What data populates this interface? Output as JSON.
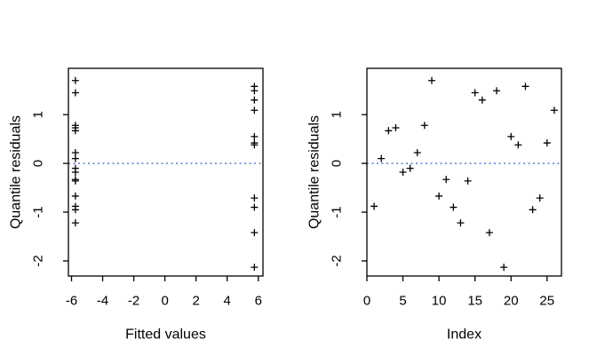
{
  "figure": {
    "background_color": "#ffffff",
    "point_color": "#000000",
    "axis_color": "#000000",
    "marker_symbol": "+",
    "reference_line": {
      "y": 0,
      "color": "#3a5fcd",
      "style": "dotted"
    }
  },
  "chart_data": [
    {
      "id": "residuals-vs-fitted",
      "type": "scatter",
      "title": "",
      "xlabel": "Fitted values",
      "ylabel": "Quantile residuals",
      "xlim": [
        -6.2,
        6.3
      ],
      "ylim": [
        -2.31,
        1.95
      ],
      "xticks": [
        -6,
        -4,
        -2,
        0,
        2,
        4,
        6
      ],
      "yticks": [
        -2,
        -1,
        0,
        1
      ],
      "grid": false,
      "legend": null,
      "marker": "plus",
      "zero_line": true,
      "points": [
        {
          "x": -5.75,
          "y": 1.7
        },
        {
          "x": -5.75,
          "y": 1.45
        },
        {
          "x": -5.75,
          "y": 0.78
        },
        {
          "x": -5.75,
          "y": 0.73
        },
        {
          "x": -5.75,
          "y": 0.67
        },
        {
          "x": -5.75,
          "y": 0.22
        },
        {
          "x": -5.75,
          "y": 0.1
        },
        {
          "x": -5.75,
          "y": -0.1
        },
        {
          "x": -5.75,
          "y": -0.18
        },
        {
          "x": -5.75,
          "y": -0.33
        },
        {
          "x": -5.75,
          "y": -0.36
        },
        {
          "x": -5.75,
          "y": -0.67
        },
        {
          "x": -5.75,
          "y": -0.88
        },
        {
          "x": -5.75,
          "y": -0.95
        },
        {
          "x": -5.75,
          "y": -1.22
        },
        {
          "x": 5.75,
          "y": 1.58
        },
        {
          "x": 5.75,
          "y": 1.49
        },
        {
          "x": 5.75,
          "y": 1.3
        },
        {
          "x": 5.75,
          "y": 1.09
        },
        {
          "x": 5.75,
          "y": 0.55
        },
        {
          "x": 5.75,
          "y": 0.42
        },
        {
          "x": 5.75,
          "y": 0.38
        },
        {
          "x": 5.75,
          "y": -0.71
        },
        {
          "x": 5.75,
          "y": -0.9
        },
        {
          "x": 5.75,
          "y": -1.42
        },
        {
          "x": 5.75,
          "y": -2.13
        }
      ]
    },
    {
      "id": "residuals-vs-index",
      "type": "scatter",
      "title": "",
      "xlabel": "Index",
      "ylabel": "Quantile residuals",
      "xlim": [
        0,
        27
      ],
      "ylim": [
        -2.31,
        1.95
      ],
      "xticks": [
        0,
        5,
        10,
        15,
        20,
        25
      ],
      "yticks": [
        -2,
        -1,
        0,
        1
      ],
      "grid": false,
      "legend": null,
      "marker": "plus",
      "zero_line": true,
      "points": [
        {
          "x": 1,
          "y": -0.88
        },
        {
          "x": 2,
          "y": 0.1
        },
        {
          "x": 3,
          "y": 0.67
        },
        {
          "x": 4,
          "y": 0.73
        },
        {
          "x": 5,
          "y": -0.18
        },
        {
          "x": 6,
          "y": -0.1
        },
        {
          "x": 7,
          "y": 0.22
        },
        {
          "x": 8,
          "y": 0.78
        },
        {
          "x": 9,
          "y": 1.7
        },
        {
          "x": 10,
          "y": -0.67
        },
        {
          "x": 11,
          "y": -0.33
        },
        {
          "x": 12,
          "y": -0.9
        },
        {
          "x": 13,
          "y": -1.22
        },
        {
          "x": 14,
          "y": -0.36
        },
        {
          "x": 15,
          "y": 1.45
        },
        {
          "x": 16,
          "y": 1.3
        },
        {
          "x": 17,
          "y": -1.42
        },
        {
          "x": 18,
          "y": 1.49
        },
        {
          "x": 19,
          "y": -2.13
        },
        {
          "x": 20,
          "y": 0.55
        },
        {
          "x": 21,
          "y": 0.38
        },
        {
          "x": 22,
          "y": 1.58
        },
        {
          "x": 23,
          "y": -0.95
        },
        {
          "x": 24,
          "y": -0.71
        },
        {
          "x": 25,
          "y": 0.42
        },
        {
          "x": 26,
          "y": 1.09
        }
      ]
    }
  ]
}
